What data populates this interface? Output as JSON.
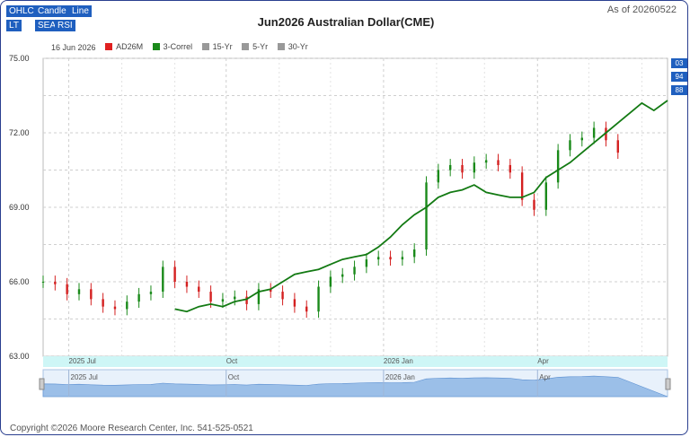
{
  "toolbar": {
    "ohlc": "OHLC",
    "candle": "Candle",
    "line": "Line",
    "lt": "LT",
    "sea": "SEA",
    "rsi": "RSI"
  },
  "header": {
    "title": "Jun2026 Australian Dollar(CME)",
    "as_of": "As of 20260522"
  },
  "legend": {
    "date": "16 Jun 2026",
    "items": [
      {
        "label": "AD26M",
        "color": "#e02020"
      },
      {
        "label": "3-Correl",
        "color": "#1a8a1a"
      },
      {
        "label": "15-Yr",
        "color": "#999999"
      },
      {
        "label": "5-Yr",
        "color": "#999999"
      },
      {
        "label": "30-Yr",
        "color": "#999999"
      }
    ]
  },
  "right_tags": [
    "03",
    "94",
    "88"
  ],
  "footer": {
    "copyright": "Copyright ©2026 Moore Research Center, Inc. 541-525-0521"
  },
  "chart_data": {
    "type": "line",
    "title": "Jun2026 Australian Dollar(CME)",
    "y_ticks": [
      "75.00",
      "72.00",
      "69.00",
      "66.00",
      "63.00"
    ],
    "ylim": [
      63,
      75
    ],
    "x_ticks": [
      "2025 Jul",
      "Oct",
      "2026 Jan",
      "Apr"
    ],
    "navigator_ticks": [
      "2025 Jul",
      "Oct",
      "2026 Jan",
      "Apr"
    ],
    "grid": true,
    "price_series": {
      "name": "AD26M",
      "dates": [
        "2025-06-16",
        "2025-06-23",
        "2025-06-30",
        "2025-07-07",
        "2025-07-14",
        "2025-07-21",
        "2025-07-28",
        "2025-08-04",
        "2025-08-11",
        "2025-08-18",
        "2025-08-25",
        "2025-09-01",
        "2025-09-08",
        "2025-09-15",
        "2025-09-22",
        "2025-09-29",
        "2025-10-06",
        "2025-10-13",
        "2025-10-20",
        "2025-10-27",
        "2025-11-03",
        "2025-11-10",
        "2025-11-17",
        "2025-11-24",
        "2025-12-01",
        "2025-12-08",
        "2025-12-15",
        "2025-12-22",
        "2025-12-29",
        "2026-01-05",
        "2026-01-12",
        "2026-01-19",
        "2026-01-26",
        "2026-02-02",
        "2026-02-09",
        "2026-02-16",
        "2026-02-23",
        "2026-03-02",
        "2026-03-09",
        "2026-03-16",
        "2026-03-23",
        "2026-03-30",
        "2026-04-06",
        "2026-04-13",
        "2026-04-20",
        "2026-04-27",
        "2026-05-04",
        "2026-05-11",
        "2026-05-18"
      ],
      "values": [
        66.0,
        65.9,
        65.5,
        65.7,
        65.3,
        65.0,
        64.9,
        65.2,
        65.5,
        65.6,
        66.6,
        66.0,
        65.8,
        65.6,
        65.2,
        65.3,
        65.4,
        65.1,
        65.7,
        65.6,
        65.3,
        65.0,
        64.8,
        65.8,
        66.2,
        66.3,
        66.6,
        66.9,
        67.0,
        66.9,
        67.0,
        67.3,
        70.0,
        70.5,
        70.7,
        70.4,
        70.8,
        70.9,
        70.7,
        70.4,
        69.3,
        68.9,
        70.0,
        71.3,
        71.7,
        71.8,
        72.2,
        71.7,
        71.2
      ]
    },
    "correl_series": {
      "name": "3-Correl",
      "dates": [
        "2025-09-01",
        "2025-09-08",
        "2025-09-15",
        "2025-09-22",
        "2025-09-29",
        "2025-10-06",
        "2025-10-13",
        "2025-10-20",
        "2025-10-27",
        "2025-11-03",
        "2025-11-10",
        "2025-11-17",
        "2025-11-24",
        "2025-12-01",
        "2025-12-08",
        "2025-12-15",
        "2025-12-22",
        "2025-12-29",
        "2026-01-05",
        "2026-01-12",
        "2026-01-19",
        "2026-01-26",
        "2026-02-02",
        "2026-02-09",
        "2026-02-16",
        "2026-02-23",
        "2026-03-02",
        "2026-03-09",
        "2026-03-16",
        "2026-03-23",
        "2026-03-30",
        "2026-04-06",
        "2026-04-13",
        "2026-04-20",
        "2026-04-27",
        "2026-05-04",
        "2026-05-11",
        "2026-05-18",
        "2026-05-25",
        "2026-06-01",
        "2026-06-08",
        "2026-06-16"
      ],
      "values": [
        64.9,
        64.8,
        65.0,
        65.1,
        65.0,
        65.2,
        65.3,
        65.6,
        65.7,
        66.0,
        66.3,
        66.4,
        66.5,
        66.7,
        66.9,
        67.0,
        67.1,
        67.4,
        67.8,
        68.3,
        68.7,
        69.0,
        69.4,
        69.6,
        69.7,
        69.9,
        69.6,
        69.5,
        69.4,
        69.4,
        69.6,
        70.2,
        70.5,
        70.8,
        71.2,
        71.6,
        72.0,
        72.4,
        72.8,
        73.2,
        72.9,
        73.3
      ]
    }
  }
}
